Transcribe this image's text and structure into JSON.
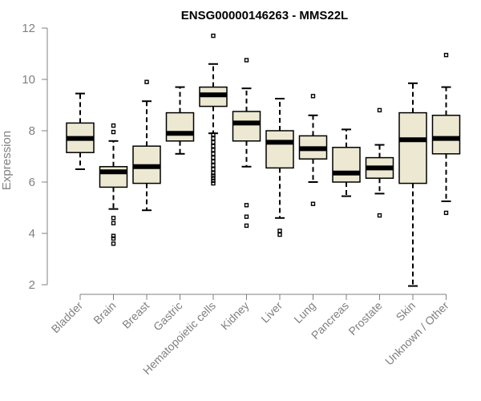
{
  "chart_data": {
    "type": "boxplot",
    "title": "ENSG00000146263 - MMS22L",
    "xlabel": "",
    "ylabel": "Expression",
    "ylim": [
      1.8,
      12.1
    ],
    "yticks": [
      2,
      4,
      6,
      8,
      10,
      12
    ],
    "box_fill": "#ede8d2",
    "categories": [
      "Bladder",
      "Brain",
      "Breast",
      "Gastric",
      "Hematopoietic cells",
      "Kidney",
      "Liver",
      "Lung",
      "Pancreas",
      "Prostate",
      "Skin",
      "Unknown / Other"
    ],
    "boxes": [
      {
        "category": "Bladder",
        "whisker_low": 6.5,
        "q1": 7.15,
        "median": 7.7,
        "q3": 8.3,
        "whisker_high": 9.45,
        "outliers": []
      },
      {
        "category": "Brain",
        "whisker_low": 4.95,
        "q1": 5.8,
        "median": 6.4,
        "q3": 6.6,
        "whisker_high": 7.6,
        "outliers": [
          8.2,
          7.95,
          4.6,
          4.4,
          3.9,
          3.8,
          3.6
        ]
      },
      {
        "category": "Breast",
        "whisker_low": 4.9,
        "q1": 5.95,
        "median": 6.6,
        "q3": 7.4,
        "whisker_high": 9.15,
        "outliers": [
          9.9
        ]
      },
      {
        "category": "Gastric",
        "whisker_low": 7.1,
        "q1": 7.6,
        "median": 7.9,
        "q3": 8.7,
        "whisker_high": 9.7,
        "outliers": []
      },
      {
        "category": "Hematopoietic cells",
        "whisker_low": 7.9,
        "q1": 8.95,
        "median": 9.4,
        "q3": 9.7,
        "whisker_high": 10.6,
        "outliers": [
          11.7,
          7.85,
          7.7,
          7.55,
          7.4,
          7.25,
          7.1,
          6.95,
          6.8,
          6.65,
          6.5,
          6.35,
          6.25,
          6.15,
          6.05,
          5.95
        ]
      },
      {
        "category": "Kidney",
        "whisker_low": 6.6,
        "q1": 7.6,
        "median": 8.3,
        "q3": 8.75,
        "whisker_high": 9.65,
        "outliers": [
          10.75,
          5.1,
          4.65,
          4.3
        ]
      },
      {
        "category": "Liver",
        "whisker_low": 4.6,
        "q1": 6.55,
        "median": 7.55,
        "q3": 8.0,
        "whisker_high": 9.25,
        "outliers": [
          4.1,
          3.95
        ]
      },
      {
        "category": "Lung",
        "whisker_low": 6.0,
        "q1": 6.9,
        "median": 7.3,
        "q3": 7.8,
        "whisker_high": 8.6,
        "outliers": [
          9.35,
          5.15
        ]
      },
      {
        "category": "Pancreas",
        "whisker_low": 5.45,
        "q1": 6.0,
        "median": 6.35,
        "q3": 7.35,
        "whisker_high": 8.05,
        "outliers": []
      },
      {
        "category": "Prostate",
        "whisker_low": 5.55,
        "q1": 6.15,
        "median": 6.55,
        "q3": 6.95,
        "whisker_high": 7.45,
        "outliers": [
          8.8,
          4.7
        ]
      },
      {
        "category": "Skin",
        "whisker_low": 1.95,
        "q1": 5.95,
        "median": 7.65,
        "q3": 8.7,
        "whisker_high": 9.85,
        "outliers": []
      },
      {
        "category": "Unknown / Other",
        "whisker_low": 5.25,
        "q1": 7.1,
        "median": 7.7,
        "q3": 8.6,
        "whisker_high": 9.7,
        "outliers": [
          10.95,
          4.8
        ]
      }
    ]
  }
}
